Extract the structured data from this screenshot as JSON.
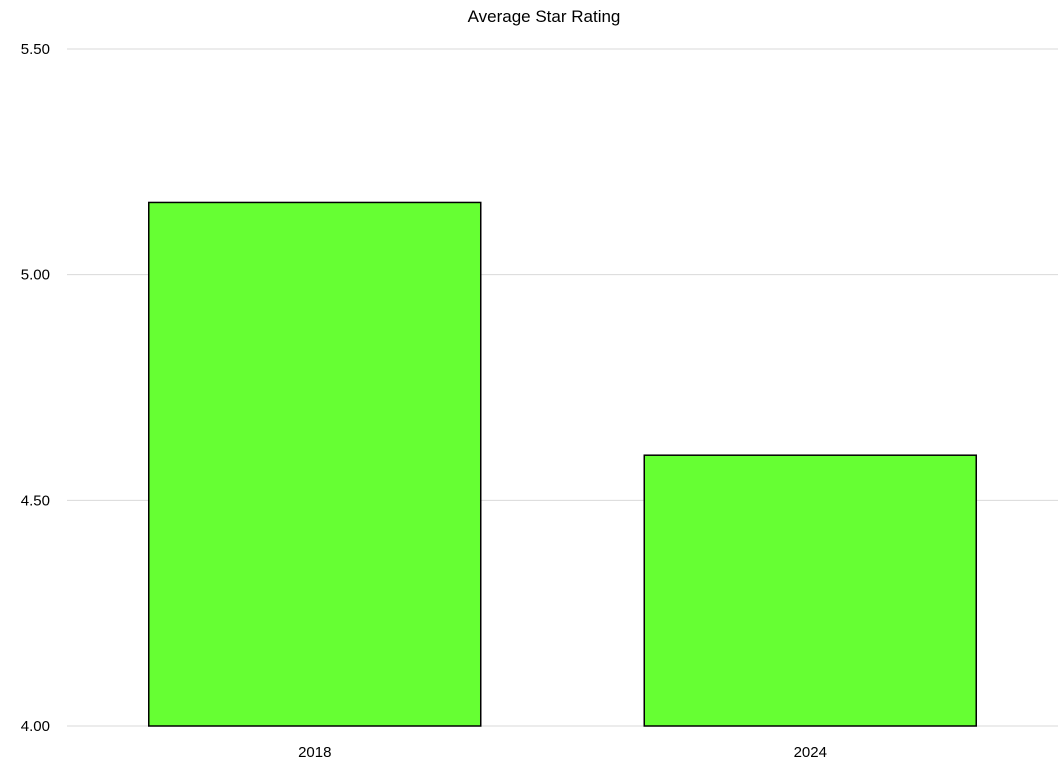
{
  "chart_data": {
    "type": "bar",
    "title": "Average Star Rating",
    "xlabel": "",
    "ylabel": "",
    "categories": [
      "2018",
      "2024"
    ],
    "values": [
      5.16,
      4.6
    ],
    "ylim": [
      4.0,
      5.5
    ],
    "yticks": [
      "4.00",
      "4.50",
      "5.00",
      "5.50"
    ],
    "grid": true,
    "legend": "none",
    "bar_color": "#66ff33",
    "bar_border_color": "#000000",
    "grid_color": "#d9d9d9"
  }
}
